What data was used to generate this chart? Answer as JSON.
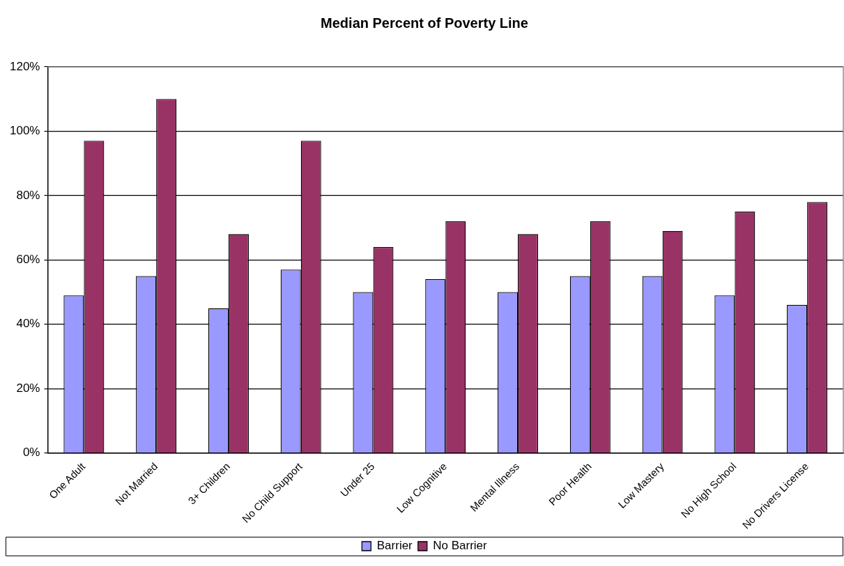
{
  "chart_data": {
    "type": "bar",
    "title": "Median Percent of Poverty Line",
    "categories": [
      "One Adult",
      "Not Married",
      "3+ Children",
      "No Child Support",
      "Under 25",
      "Low Cognitive",
      "Mental Illness",
      "Poor Health",
      "Low Mastery",
      "No High School",
      "No Drivers License"
    ],
    "series": [
      {
        "name": "Barrier",
        "color": "#9999ff",
        "values": [
          49,
          55,
          45,
          57,
          50,
          54,
          50,
          55,
          55,
          49,
          46
        ]
      },
      {
        "name": "No Barrier",
        "color": "#993366",
        "values": [
          97,
          110,
          68,
          97,
          64,
          72,
          68,
          72,
          69,
          75,
          78
        ]
      }
    ],
    "ylim": [
      0,
      120
    ],
    "yticks": [
      {
        "value": 0,
        "label": "0%"
      },
      {
        "value": 20,
        "label": "20%"
      },
      {
        "value": 40,
        "label": "40%"
      },
      {
        "value": 60,
        "label": "60%"
      },
      {
        "value": 80,
        "label": "80%"
      },
      {
        "value": 100,
        "label": "100%"
      },
      {
        "value": 120,
        "label": "120%"
      }
    ],
    "grid": "y",
    "legend": "bottom"
  }
}
